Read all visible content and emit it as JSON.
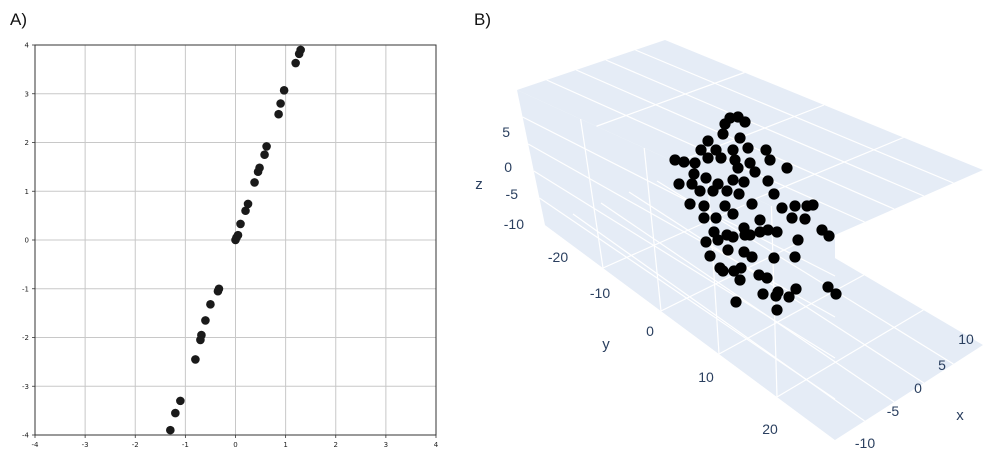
{
  "labels": {
    "a": "A)",
    "b": "B)"
  },
  "chart_data": [
    {
      "type": "scatter",
      "title": "",
      "xlabel": "",
      "ylabel": "",
      "xlim": [
        -4,
        4
      ],
      "ylim": [
        -4,
        4
      ],
      "grid": true,
      "point_color": "#1a1a1a",
      "xticks": [
        "-4",
        "-3",
        "-2",
        "-1",
        "0",
        "1",
        "2",
        "3",
        "4"
      ],
      "yticks": [
        "-4",
        "-3",
        "-2",
        "-1",
        "0",
        "1",
        "2",
        "3",
        "4"
      ],
      "x": [
        -1.3,
        -1.2,
        -1.1,
        -0.8,
        -0.7,
        -0.68,
        -0.6,
        -0.5,
        -0.35,
        -0.33,
        0.0,
        0.02,
        0.05,
        0.1,
        0.2,
        0.25,
        0.38,
        0.45,
        0.48,
        0.58,
        0.62,
        0.86,
        0.9,
        0.97,
        1.2,
        1.27,
        1.3
      ],
      "y": [
        -3.9,
        -3.55,
        -3.3,
        -2.45,
        -2.05,
        -1.95,
        -1.65,
        -1.32,
        -1.05,
        -1.0,
        0.0,
        0.05,
        0.1,
        0.33,
        0.6,
        0.74,
        1.18,
        1.4,
        1.48,
        1.75,
        1.92,
        2.58,
        2.8,
        3.07,
        3.63,
        3.82,
        3.9
      ]
    },
    {
      "type": "scatter",
      "title": "",
      "scatter_3d": true,
      "axes": {
        "x": {
          "title": "x",
          "ticks": [
            "10",
            "5",
            "0",
            "-5",
            "-10"
          ]
        },
        "y": {
          "title": "y",
          "ticks": [
            "-20",
            "-10",
            "0",
            "10",
            "20"
          ]
        },
        "z": {
          "title": "z",
          "ticks": [
            "5",
            "0",
            "-5",
            "-10"
          ]
        }
      },
      "point_color": "#000000",
      "background_color": "#e5ecf6"
    }
  ]
}
